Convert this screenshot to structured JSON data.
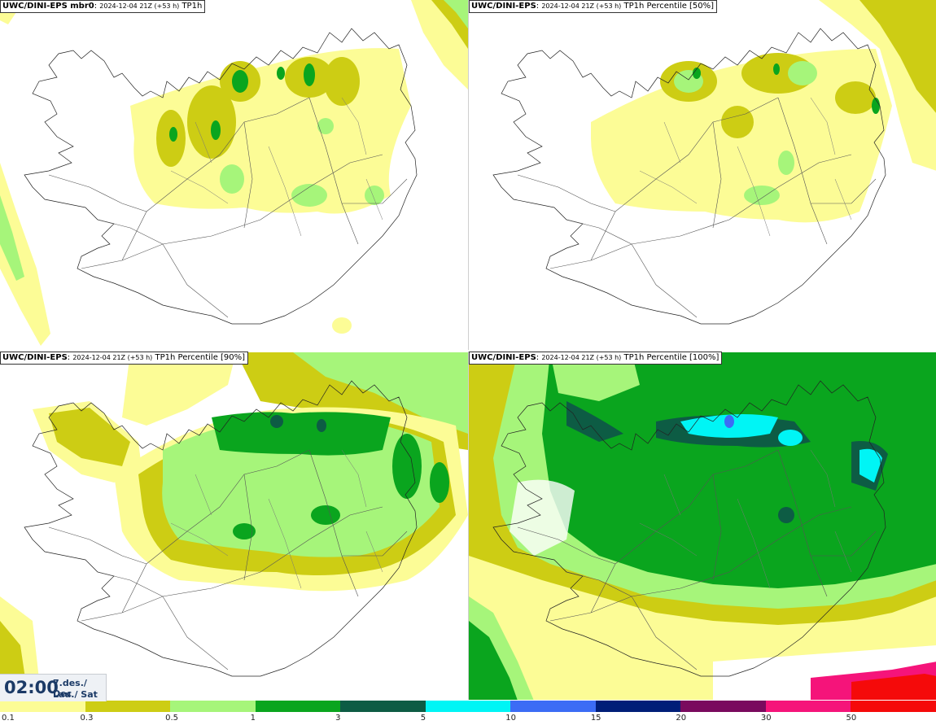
{
  "panels": [
    {
      "id": "tl",
      "model": "UWC/DINI-EPS",
      "member": " mbr0",
      "run": "2024-12-04 21Z (+53 h)",
      "variable": "TP1h"
    },
    {
      "id": "tr",
      "model": "UWC/DINI-EPS",
      "member": "",
      "run": "2024-12-04 21Z (+53 h)",
      "variable": "TP1h Percentile [50%]"
    },
    {
      "id": "bl",
      "model": "UWC/DINI-EPS",
      "member": "",
      "run": "2024-12-04 21Z (+53 h)",
      "variable": "TP1h Percentile [90%]"
    },
    {
      "id": "br",
      "model": "UWC/DINI-EPS",
      "member": "",
      "run": "2024-12-04 21Z (+53 h)",
      "variable": "TP1h Percentile [100%]"
    }
  ],
  "valid_time": {
    "time": "02:00",
    "date": "7.des./ Dec",
    "day": "Lau./ Sat"
  },
  "legend": {
    "ticks": [
      "0.1",
      "0.3",
      "0.5",
      "1",
      "3",
      "5",
      "10",
      "15",
      "20",
      "30",
      "50"
    ],
    "colors": [
      "#fcfc96",
      "#cdcd14",
      "#a6f57a",
      "#0aa51e",
      "#0d5c44",
      "#00f5f5",
      "#3c6cf5",
      "#001e78",
      "#7a0a5e",
      "#f5147a",
      "#f50a0a"
    ]
  }
}
